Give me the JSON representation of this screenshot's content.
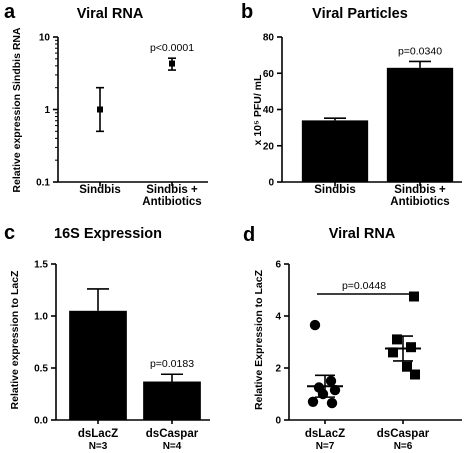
{
  "chart_data": [
    {
      "panel": "a",
      "type": "scatter",
      "title": "Viral RNA",
      "ylabel": "Relative expression Sindbis RNA",
      "yscale": "log",
      "ylim": [
        0.1,
        10
      ],
      "yticks": [
        "0.1",
        "1",
        "10"
      ],
      "categories": [
        "Sindbis",
        "Sindbis + Antibiotics"
      ],
      "mean": [
        1.0,
        4.3
      ],
      "err_low": [
        0.5,
        3.5
      ],
      "err_high": [
        2.0,
        5.1
      ],
      "annotations": [
        {
          "category": "Sindbis + Antibiotics",
          "text": "p<0.0001"
        }
      ],
      "grid": false
    },
    {
      "panel": "b",
      "type": "bar",
      "title": "Viral Particles",
      "ylabel": "x 10⁵ PFU/ mL",
      "ylim": [
        0,
        80
      ],
      "yticks": [
        "0",
        "20",
        "40",
        "60",
        "80"
      ],
      "categories": [
        "Sindbis",
        "Sindbis + Antibiotics"
      ],
      "values": [
        34,
        63
      ],
      "err": [
        1.2,
        3.5
      ],
      "annotations": [
        {
          "category": "Sindbis + Antibiotics",
          "text": "p=0.0340"
        }
      ],
      "grid": false
    },
    {
      "panel": "c",
      "type": "bar",
      "title": "16S Expression",
      "ylabel": "Relative expression to LacZ",
      "ylim": [
        0,
        1.5
      ],
      "yticks": [
        "0.0",
        "0.5",
        "1.0",
        "1.5"
      ],
      "categories": [
        "dsLacZ",
        "dsCaspar"
      ],
      "sublabels": [
        "N=3",
        "N=4"
      ],
      "values": [
        1.05,
        0.37
      ],
      "err": [
        0.21,
        0.07
      ],
      "annotations": [
        {
          "category": "dsCaspar",
          "text": "p=0.0183"
        }
      ],
      "grid": false
    },
    {
      "panel": "d",
      "type": "scatter",
      "title": "Viral RNA",
      "ylabel": "Relative Expression to LacZ",
      "ylim": [
        0,
        6
      ],
      "yticks": [
        "0",
        "2",
        "4",
        "6"
      ],
      "categories": [
        "dsLacZ",
        "dsCaspar"
      ],
      "sublabels": [
        "N=7",
        "N=6"
      ],
      "points": [
        [
          3.65,
          1.5,
          1.25,
          1.15,
          1.0,
          0.7,
          0.65
        ],
        [
          4.75,
          3.1,
          2.8,
          2.6,
          2.05,
          1.75
        ]
      ],
      "mean": [
        1.3,
        2.75
      ],
      "sem": [
        0.42,
        0.48
      ],
      "annotations": [
        {
          "between": [
            "dsLacZ",
            "dsCaspar"
          ],
          "text": "p=0.0448"
        }
      ],
      "grid": false
    }
  ]
}
